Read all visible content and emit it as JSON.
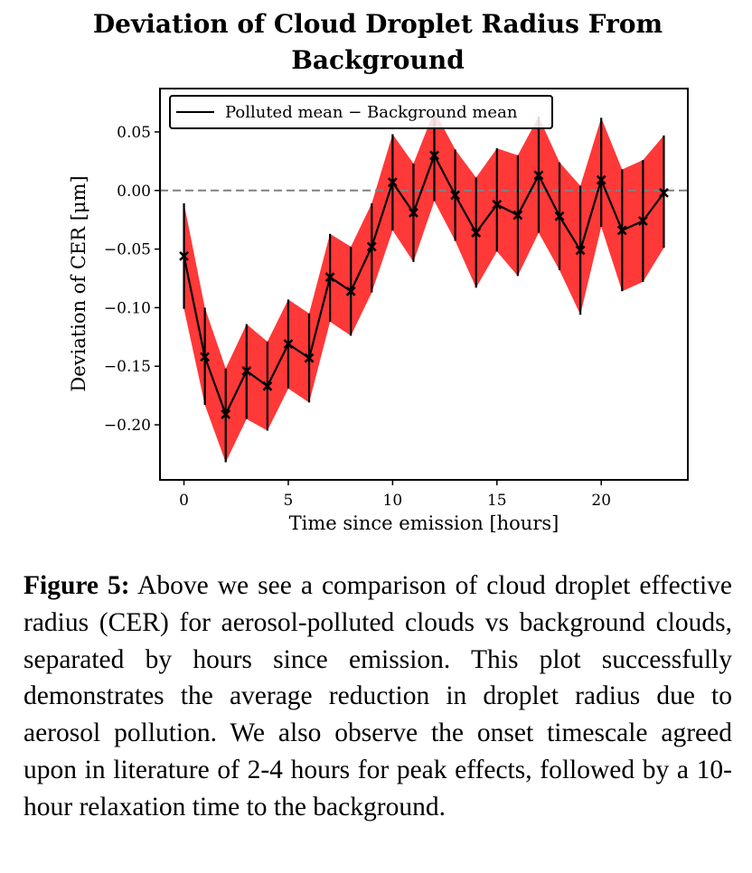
{
  "chart_data": {
    "type": "line",
    "title_lines": [
      "Deviation of Cloud Droplet Radius From",
      "Background"
    ],
    "xlabel": "Time since emission [hours]",
    "ylabel": "Deviation of CER [μm]",
    "xlim": [
      -1.15,
      24.15
    ],
    "ylim": [
      -0.247,
      0.087
    ],
    "xticks": [
      0,
      5,
      10,
      15,
      20
    ],
    "xtick_labels": [
      "0",
      "5",
      "10",
      "15",
      "20"
    ],
    "yticks": [
      0.05,
      0.0,
      -0.05,
      -0.1,
      -0.15,
      -0.2
    ],
    "ytick_labels": [
      "0.05",
      "0.00",
      "−0.05",
      "−0.10",
      "−0.15",
      "−0.20"
    ],
    "reference_line": {
      "y": 0.0,
      "style": "dashed",
      "color": "#808080"
    },
    "legend_position": "upper-left",
    "series": [
      {
        "name": "Polluted mean − Background mean",
        "color": "#000000",
        "marker": "x",
        "x": [
          0,
          1,
          2,
          3,
          4,
          5,
          6,
          7,
          8,
          9,
          10,
          11,
          12,
          13,
          14,
          15,
          16,
          17,
          18,
          19,
          20,
          21,
          22,
          23
        ],
        "y": [
          -0.056,
          -0.142,
          -0.191,
          -0.154,
          -0.167,
          -0.131,
          -0.143,
          -0.074,
          -0.086,
          -0.048,
          0.007,
          -0.019,
          0.03,
          -0.004,
          -0.036,
          -0.012,
          -0.021,
          0.013,
          -0.022,
          -0.051,
          0.009,
          -0.034,
          -0.026,
          -0.002
        ],
        "lower": [
          -0.101,
          -0.183,
          -0.232,
          -0.195,
          -0.205,
          -0.169,
          -0.181,
          -0.112,
          -0.124,
          -0.087,
          -0.034,
          -0.061,
          -0.009,
          -0.043,
          -0.083,
          -0.052,
          -0.073,
          -0.036,
          -0.068,
          -0.106,
          -0.031,
          -0.086,
          -0.078,
          -0.049
        ],
        "upper": [
          -0.011,
          -0.1,
          -0.152,
          -0.114,
          -0.129,
          -0.093,
          -0.105,
          -0.037,
          -0.048,
          -0.011,
          0.048,
          0.023,
          0.068,
          0.035,
          0.011,
          0.036,
          0.03,
          0.063,
          0.024,
          0.004,
          0.062,
          0.018,
          0.026,
          0.047
        ],
        "band_color": "#ff0000",
        "band_opacity": 0.78
      }
    ]
  },
  "caption": {
    "label": "Figure 5:",
    "text": "Above we see a comparison of cloud droplet effective radius (CER) for aerosol-polluted clouds vs background clouds, separated by hours since emission. This plot successfully demonstrates the average reduc­tion in droplet radius due to aerosol pollution. We also observe the onset timescale agreed upon in literature of 2-4 hours for peak effects, followed by a 10-hour relax­ation time to the background."
  }
}
